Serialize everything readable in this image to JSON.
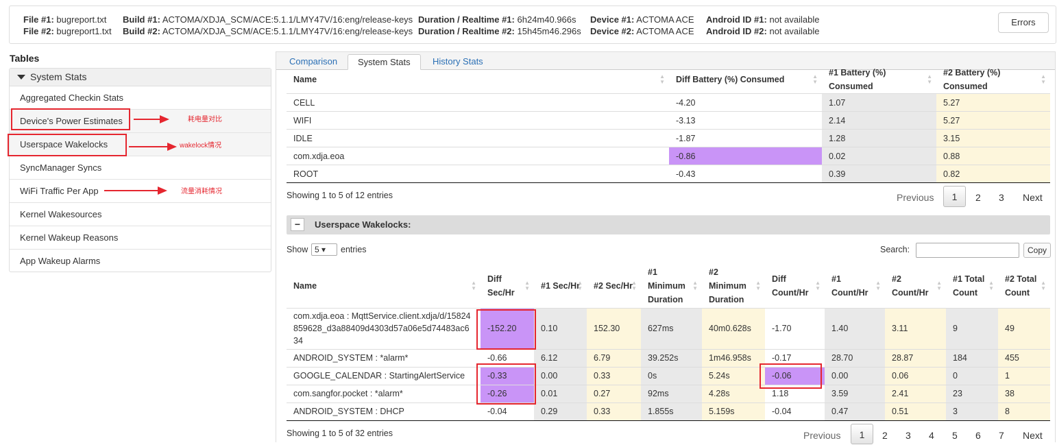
{
  "header": {
    "file1_label": "File #1:",
    "file1_value": "bugreport.txt",
    "file2_label": "File #2:",
    "file2_value": "bugreport1.txt",
    "build1_label": "Build #1:",
    "build1_value": "ACTOMA/XDJA_SCM/ACE:5.1.1/LMY47V/16:eng/release-keys",
    "build2_label": "Build #2:",
    "build2_value": "ACTOMA/XDJA_SCM/ACE:5.1.1/LMY47V/16:eng/release-keys",
    "dur1_label": "Duration / Realtime #1:",
    "dur1_value": "6h24m40.966s",
    "dur2_label": "Duration / Realtime #2:",
    "dur2_value": "15h45m46.296s",
    "dev1_label": "Device #1:",
    "dev1_value": "ACTOMA ACE",
    "dev2_label": "Device #2:",
    "dev2_value": "ACTOMA ACE",
    "aid1_label": "Android ID #1:",
    "aid1_value": "not available",
    "aid2_label": "Android ID #2:",
    "aid2_value": "not available",
    "errors_button": "Errors"
  },
  "sidebar": {
    "title": "Tables",
    "group": "System Stats",
    "items": [
      {
        "label": "Aggregated Checkin Stats"
      },
      {
        "label": "Device's Power Estimates"
      },
      {
        "label": "Userspace Wakelocks"
      },
      {
        "label": "SyncManager Syncs"
      },
      {
        "label": "WiFi Traffic Per App"
      },
      {
        "label": "Kernel Wakesources"
      },
      {
        "label": "Kernel Wakeup Reasons"
      },
      {
        "label": "App Wakeup Alarms"
      }
    ]
  },
  "annotations": {
    "power": "耗电量对比",
    "wakelock": "wakelock情况",
    "wifi": "流量消耗情况"
  },
  "tabs": [
    {
      "label": "Comparison"
    },
    {
      "label": "System Stats"
    },
    {
      "label": "History Stats"
    }
  ],
  "power_table": {
    "headers": [
      "Name",
      "Diff Battery (%) Consumed",
      "#1 Battery (%) Consumed",
      "#2 Battery (%) Consumed"
    ],
    "rows": [
      [
        "CELL",
        "-4.20",
        "1.07",
        "5.27"
      ],
      [
        "WIFI",
        "-3.13",
        "2.14",
        "5.27"
      ],
      [
        "IDLE",
        "-1.87",
        "1.28",
        "3.15"
      ],
      [
        "com.xdja.eoa",
        "-0.86",
        "0.02",
        "0.88"
      ],
      [
        "ROOT",
        "-0.43",
        "0.39",
        "0.82"
      ]
    ],
    "info": "Showing 1 to 5 of 12 entries",
    "pager": {
      "prev": "Previous",
      "pages": [
        "1",
        "2",
        "3"
      ],
      "next": "Next"
    }
  },
  "wakelocks": {
    "title": "Userspace Wakelocks:",
    "collapse": "−",
    "show_label": "Show",
    "show_value": "5 ▾",
    "entries_label": "entries",
    "search_label": "Search:",
    "copy_button": "Copy",
    "headers": [
      "Name",
      "Diff Sec/Hr",
      "#1 Sec/Hr",
      "#2 Sec/Hr",
      "#1 Minimum Duration",
      "#2 Minimum Duration",
      "Diff Count/Hr",
      "#1 Count/Hr",
      "#2 Count/Hr",
      "#1 Total Count",
      "#2 Total Count"
    ],
    "rows": [
      [
        "com.xdja.eoa : MqttService.client.xdja/d/15824859628_d3a88409d4303d57a06e5d74483ac634",
        "-152.20",
        "0.10",
        "152.30",
        "627ms",
        "40m0.628s",
        "-1.70",
        "1.40",
        "3.11",
        "9",
        "49"
      ],
      [
        "ANDROID_SYSTEM : *alarm*",
        "-0.66",
        "6.12",
        "6.79",
        "39.252s",
        "1m46.958s",
        "-0.17",
        "28.70",
        "28.87",
        "184",
        "455"
      ],
      [
        "GOOGLE_CALENDAR : StartingAlertService",
        "-0.33",
        "0.00",
        "0.33",
        "0s",
        "5.24s",
        "-0.06",
        "0.00",
        "0.06",
        "0",
        "1"
      ],
      [
        "com.sangfor.pocket : *alarm*",
        "-0.26",
        "0.01",
        "0.27",
        "92ms",
        "4.28s",
        "1.18",
        "3.59",
        "2.41",
        "23",
        "38"
      ],
      [
        "ANDROID_SYSTEM : DHCP",
        "-0.04",
        "0.29",
        "0.33",
        "1.855s",
        "5.159s",
        "-0.04",
        "0.47",
        "0.51",
        "3",
        "8"
      ]
    ],
    "info": "Showing 1 to 5 of 32 entries",
    "pager": {
      "prev": "Previous",
      "pages": [
        "1",
        "2",
        "3",
        "4",
        "5",
        "6",
        "7"
      ],
      "next": "Next"
    }
  },
  "colors": {
    "highlight": "#c994f7",
    "gray_col": "#e9e9e9",
    "yellow_col": "#fdf6dc",
    "annotation": "#e5262f"
  }
}
